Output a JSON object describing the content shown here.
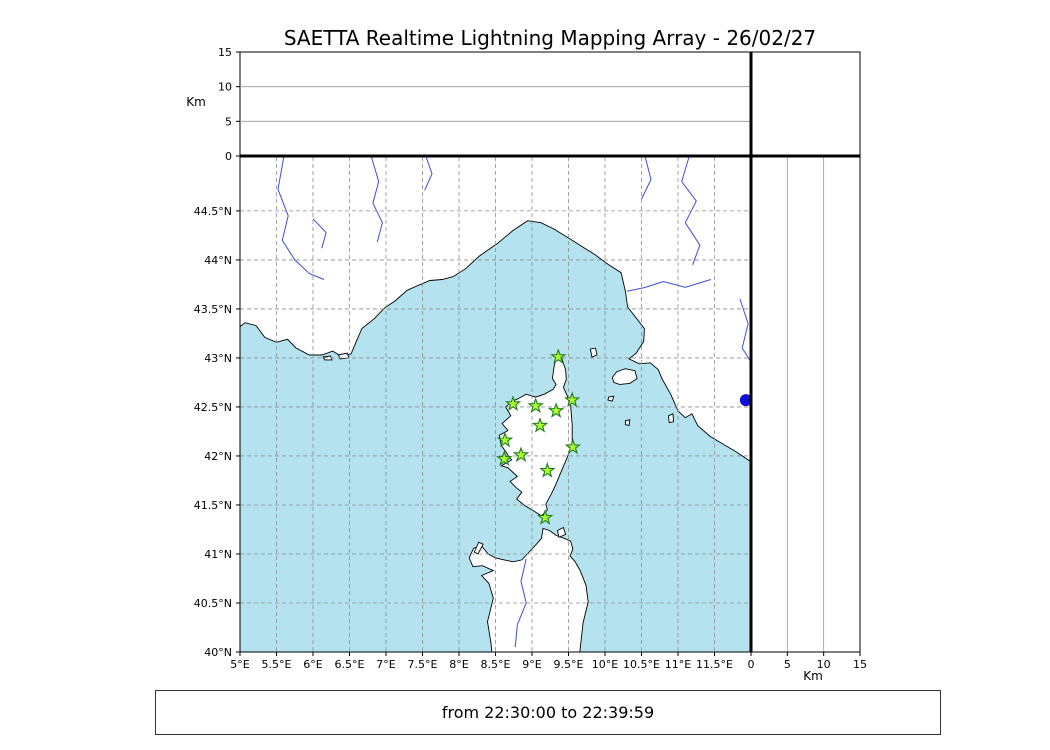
{
  "title": "SAETTA Realtime Lightning Mapping Array - 26/02/27",
  "footer": {
    "text": "from 22:30:00 to 22:39:59"
  },
  "colors": {
    "sea": "#b4e2ef",
    "land": "#ffffff",
    "coastline": "#000000",
    "river": "#3d4ed0",
    "grid": "#8c8c8c",
    "panel_grid": "#999999",
    "station_fill": "#adff2f",
    "station_edge": "#1e7d1e",
    "event_marker": "#0f0fd6",
    "frame": "#000000"
  },
  "chart_data": {
    "type": "map",
    "title": "SAETTA Realtime Lightning Mapping Array - 26/02/27",
    "time_window": "from 22:30:00 to 22:39:59",
    "axes": {
      "lon_range": [
        5,
        12
      ],
      "lat_range": [
        40,
        45.05
      ],
      "alt_range_km": [
        0,
        15
      ],
      "lon_tick_step": 0.5,
      "lat_tick_step": 0.5,
      "alt_ticks_km": [
        0,
        5,
        10,
        15
      ],
      "alt_axis_label": "Km",
      "lon_tick_labels": [
        "5°E",
        "5.5°E",
        "6°E",
        "6.5°E",
        "7°E",
        "7.5°E",
        "8°E",
        "8.5°E",
        "9°E",
        "9.5°E",
        "10°E",
        "10.5°E",
        "11°E",
        "11.5°E"
      ],
      "lat_tick_labels": [
        "40°N",
        "40.5°N",
        "41°N",
        "41.5°N",
        "42°N",
        "42.5°N",
        "43°N",
        "43.5°N",
        "44°N",
        "44.5°N"
      ],
      "grid_style": "dashed"
    },
    "stations": [
      {
        "lon": 9.36,
        "lat": 43.01
      },
      {
        "lon": 8.74,
        "lat": 42.53
      },
      {
        "lon": 9.05,
        "lat": 42.51
      },
      {
        "lon": 9.33,
        "lat": 42.46
      },
      {
        "lon": 9.55,
        "lat": 42.57
      },
      {
        "lon": 9.11,
        "lat": 42.31
      },
      {
        "lon": 8.63,
        "lat": 42.16
      },
      {
        "lon": 9.56,
        "lat": 42.09
      },
      {
        "lon": 8.62,
        "lat": 41.97
      },
      {
        "lon": 8.85,
        "lat": 42.01
      },
      {
        "lon": 9.21,
        "lat": 41.85
      },
      {
        "lon": 9.18,
        "lat": 41.37
      }
    ],
    "event_marker": {
      "lon": 11.93,
      "lat": 42.57,
      "shape": "circle",
      "color": "#0f0fd6"
    },
    "basemap": {
      "land_polygons": {
        "mainland": [
          [
            5.0,
            43.32
          ],
          [
            5.07,
            43.36
          ],
          [
            5.22,
            43.33
          ],
          [
            5.34,
            43.21
          ],
          [
            5.5,
            43.16
          ],
          [
            5.65,
            43.19
          ],
          [
            5.77,
            43.1
          ],
          [
            5.95,
            43.03
          ],
          [
            6.12,
            43.03
          ],
          [
            6.27,
            43.07
          ],
          [
            6.38,
            43.02
          ],
          [
            6.52,
            43.04
          ],
          [
            6.6,
            43.18
          ],
          [
            6.67,
            43.3
          ],
          [
            6.84,
            43.4
          ],
          [
            6.98,
            43.51
          ],
          [
            7.12,
            43.58
          ],
          [
            7.29,
            43.69
          ],
          [
            7.44,
            43.74
          ],
          [
            7.6,
            43.79
          ],
          [
            7.77,
            43.8
          ],
          [
            7.92,
            43.83
          ],
          [
            8.09,
            43.91
          ],
          [
            8.28,
            44.04
          ],
          [
            8.53,
            44.17
          ],
          [
            8.74,
            44.3
          ],
          [
            8.94,
            44.4
          ],
          [
            9.12,
            44.38
          ],
          [
            9.29,
            44.32
          ],
          [
            9.51,
            44.22
          ],
          [
            9.7,
            44.13
          ],
          [
            9.85,
            44.06
          ],
          [
            10.05,
            43.95
          ],
          [
            10.22,
            43.87
          ],
          [
            10.28,
            43.68
          ],
          [
            10.31,
            43.52
          ],
          [
            10.54,
            43.3
          ],
          [
            10.53,
            43.17
          ],
          [
            10.43,
            43.05
          ],
          [
            10.33,
            42.99
          ],
          [
            10.47,
            42.94
          ],
          [
            10.62,
            42.95
          ],
          [
            10.73,
            42.88
          ],
          [
            10.78,
            42.79
          ],
          [
            10.9,
            42.63
          ],
          [
            11.0,
            42.46
          ],
          [
            11.1,
            42.39
          ],
          [
            11.19,
            42.43
          ],
          [
            11.27,
            42.31
          ],
          [
            11.44,
            42.2
          ],
          [
            11.62,
            42.12
          ],
          [
            11.8,
            42.04
          ],
          [
            12.0,
            41.94
          ],
          [
            12.0,
            45.05
          ],
          [
            5.0,
            45.05
          ]
        ],
        "corsica": [
          [
            9.35,
            43.01
          ],
          [
            9.41,
            42.99
          ],
          [
            9.46,
            42.88
          ],
          [
            9.47,
            42.78
          ],
          [
            9.43,
            42.7
          ],
          [
            9.48,
            42.62
          ],
          [
            9.53,
            42.5
          ],
          [
            9.55,
            42.32
          ],
          [
            9.55,
            42.12
          ],
          [
            9.48,
            41.98
          ],
          [
            9.4,
            41.84
          ],
          [
            9.32,
            41.7
          ],
          [
            9.27,
            41.62
          ],
          [
            9.19,
            41.51
          ],
          [
            9.21,
            41.45
          ],
          [
            9.13,
            41.39
          ],
          [
            9.02,
            41.44
          ],
          [
            8.89,
            41.5
          ],
          [
            8.79,
            41.56
          ],
          [
            8.86,
            41.63
          ],
          [
            8.78,
            41.68
          ],
          [
            8.7,
            41.74
          ],
          [
            8.8,
            41.79
          ],
          [
            8.67,
            41.88
          ],
          [
            8.58,
            41.9
          ],
          [
            8.72,
            41.96
          ],
          [
            8.67,
            42.01
          ],
          [
            8.58,
            42.11
          ],
          [
            8.55,
            42.21
          ],
          [
            8.67,
            42.26
          ],
          [
            8.59,
            42.33
          ],
          [
            8.71,
            42.41
          ],
          [
            8.64,
            42.5
          ],
          [
            8.73,
            42.56
          ],
          [
            8.8,
            42.58
          ],
          [
            8.92,
            42.63
          ],
          [
            9.05,
            42.6
          ],
          [
            9.17,
            42.63
          ],
          [
            9.29,
            42.68
          ],
          [
            9.33,
            42.73
          ],
          [
            9.28,
            42.79
          ],
          [
            9.3,
            42.9
          ],
          [
            9.32,
            42.97
          ]
        ],
        "sardinia": [
          [
            8.46,
            39.9
          ],
          [
            8.44,
            40.08
          ],
          [
            8.39,
            40.31
          ],
          [
            8.47,
            40.55
          ],
          [
            8.41,
            40.7
          ],
          [
            8.31,
            40.78
          ],
          [
            8.47,
            40.83
          ],
          [
            8.32,
            40.88
          ],
          [
            8.19,
            40.87
          ],
          [
            8.14,
            40.96
          ],
          [
            8.2,
            41.06
          ],
          [
            8.31,
            41.08
          ],
          [
            8.4,
            41.0
          ],
          [
            8.5,
            40.96
          ],
          [
            8.62,
            40.94
          ],
          [
            8.74,
            40.92
          ],
          [
            8.86,
            40.94
          ],
          [
            8.96,
            41.02
          ],
          [
            9.06,
            41.1
          ],
          [
            9.13,
            41.16
          ],
          [
            9.15,
            41.26
          ],
          [
            9.24,
            41.24
          ],
          [
            9.33,
            41.19
          ],
          [
            9.44,
            41.16
          ],
          [
            9.53,
            41.13
          ],
          [
            9.56,
            41.05
          ],
          [
            9.52,
            40.98
          ],
          [
            9.59,
            40.92
          ],
          [
            9.66,
            40.83
          ],
          [
            9.74,
            40.68
          ],
          [
            9.77,
            40.51
          ],
          [
            9.7,
            40.3
          ],
          [
            9.67,
            40.1
          ],
          [
            9.64,
            39.9
          ]
        ],
        "elba": [
          [
            10.1,
            42.8
          ],
          [
            10.16,
            42.86
          ],
          [
            10.28,
            42.89
          ],
          [
            10.41,
            42.87
          ],
          [
            10.44,
            42.79
          ],
          [
            10.34,
            42.74
          ],
          [
            10.2,
            42.73
          ],
          [
            10.12,
            42.75
          ]
        ],
        "capraia": [
          [
            9.8,
            43.09
          ],
          [
            9.87,
            43.1
          ],
          [
            9.89,
            43.03
          ],
          [
            9.82,
            43.01
          ]
        ],
        "pianosa": [
          [
            10.05,
            42.6
          ],
          [
            10.12,
            42.61
          ],
          [
            10.1,
            42.56
          ],
          [
            10.04,
            42.57
          ]
        ],
        "montecristo": [
          [
            10.28,
            42.36
          ],
          [
            10.34,
            42.37
          ],
          [
            10.33,
            42.31
          ],
          [
            10.28,
            42.32
          ]
        ],
        "giglio": [
          [
            10.87,
            42.41
          ],
          [
            10.93,
            42.43
          ],
          [
            10.94,
            42.35
          ],
          [
            10.88,
            42.34
          ]
        ],
        "porquerolles": [
          [
            6.14,
            43.01
          ],
          [
            6.24,
            43.02
          ],
          [
            6.26,
            42.98
          ],
          [
            6.16,
            42.98
          ]
        ],
        "portcros": [
          [
            6.35,
            43.03
          ],
          [
            6.47,
            43.05
          ],
          [
            6.49,
            43.0
          ],
          [
            6.37,
            42.99
          ]
        ],
        "asinara": [
          [
            8.21,
            41.02
          ],
          [
            8.27,
            41.12
          ],
          [
            8.33,
            41.1
          ],
          [
            8.26,
            41.0
          ]
        ],
        "maddalena": [
          [
            9.35,
            41.24
          ],
          [
            9.43,
            41.27
          ],
          [
            9.46,
            41.2
          ],
          [
            9.37,
            41.17
          ]
        ]
      },
      "rivers": [
        [
          [
            5.6,
            45.05
          ],
          [
            5.52,
            44.72
          ],
          [
            5.66,
            44.45
          ],
          [
            5.58,
            44.2
          ],
          [
            5.75,
            44.0
          ],
          [
            5.95,
            43.86
          ],
          [
            6.15,
            43.8
          ]
        ],
        [
          [
            6.0,
            44.42
          ],
          [
            6.18,
            44.28
          ],
          [
            6.12,
            44.12
          ]
        ],
        [
          [
            6.8,
            45.05
          ],
          [
            6.9,
            44.8
          ],
          [
            6.82,
            44.58
          ],
          [
            6.95,
            44.38
          ],
          [
            6.88,
            44.18
          ]
        ],
        [
          [
            7.55,
            45.05
          ],
          [
            7.63,
            44.88
          ],
          [
            7.53,
            44.71
          ]
        ],
        [
          [
            10.55,
            45.05
          ],
          [
            10.63,
            44.82
          ],
          [
            10.5,
            44.62
          ]
        ],
        [
          [
            11.15,
            45.05
          ],
          [
            11.05,
            44.8
          ],
          [
            11.25,
            44.6
          ],
          [
            11.1,
            44.38
          ],
          [
            11.3,
            44.15
          ],
          [
            11.2,
            43.95
          ]
        ],
        [
          [
            11.45,
            43.8
          ],
          [
            11.1,
            43.72
          ],
          [
            10.8,
            43.78
          ],
          [
            10.55,
            43.72
          ],
          [
            10.3,
            43.68
          ]
        ],
        [
          [
            11.85,
            43.6
          ],
          [
            11.96,
            43.35
          ],
          [
            11.88,
            43.1
          ],
          [
            12.0,
            42.96
          ]
        ],
        [
          [
            8.92,
            40.95
          ],
          [
            8.85,
            40.72
          ],
          [
            8.92,
            40.5
          ],
          [
            8.8,
            40.28
          ],
          [
            8.77,
            40.05
          ]
        ]
      ]
    }
  }
}
